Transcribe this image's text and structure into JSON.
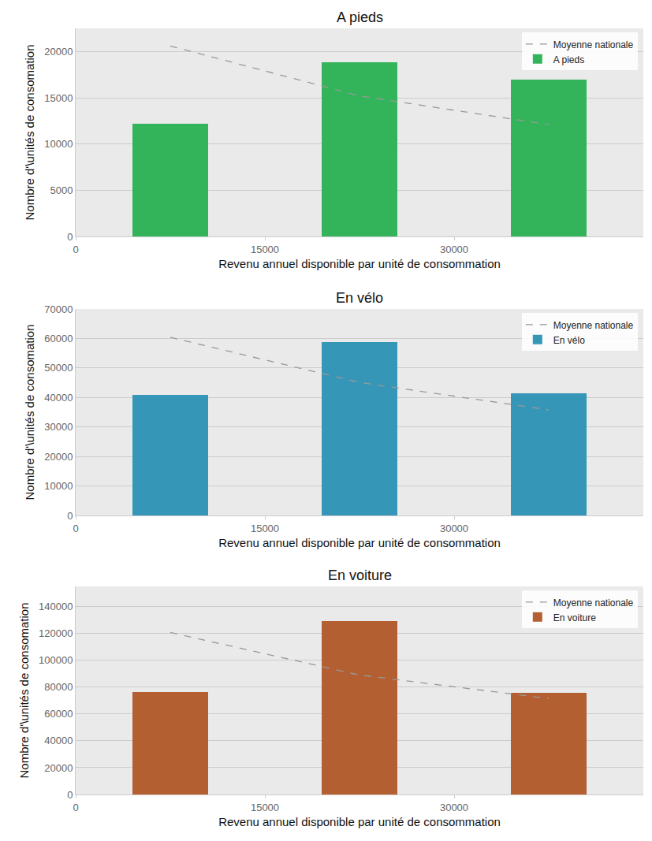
{
  "chart_data": [
    {
      "type": "bar",
      "title": "A pieds",
      "xlabel": "Revenu annuel disponible par unité de consommation",
      "ylabel": "Nombre d'\\unités de consomation",
      "x": [
        7500,
        22500,
        37500
      ],
      "series": [
        {
          "name": "Moyenne nationale",
          "type": "line",
          "line_style": "dashed",
          "color": "#999999",
          "values": [
            20600,
            15200,
            12100
          ]
        },
        {
          "name": "A pieds",
          "type": "bar",
          "color": "#34b45a",
          "values": [
            12200,
            18800,
            17000
          ]
        }
      ],
      "xlim": [
        0,
        45000
      ],
      "xticks": [
        0,
        15000,
        30000
      ],
      "ylim": [
        0,
        22500
      ],
      "yticks": [
        0,
        5000,
        10000,
        15000,
        20000
      ],
      "grid": true,
      "legend": "upper right"
    },
    {
      "type": "bar",
      "title": "En vélo",
      "xlabel": "Revenu annuel disponible par unité de consommation",
      "ylabel": "Nombre d'\\unités de consomation",
      "x": [
        7500,
        22500,
        37500
      ],
      "series": [
        {
          "name": "Moyenne nationale",
          "type": "line",
          "line_style": "dashed",
          "color": "#999999",
          "values": [
            60400,
            45100,
            35800
          ]
        },
        {
          "name": "En vélo",
          "type": "bar",
          "color": "#3596b8",
          "values": [
            40900,
            58800,
            41400
          ]
        }
      ],
      "xlim": [
        0,
        45000
      ],
      "xticks": [
        0,
        15000,
        30000
      ],
      "ylim": [
        0,
        70000
      ],
      "yticks": [
        0,
        10000,
        20000,
        30000,
        40000,
        50000,
        60000,
        70000
      ],
      "grid": true,
      "legend": "upper right"
    },
    {
      "type": "bar",
      "title": "En voiture",
      "xlabel": "Revenu annuel disponible par unité de consommation",
      "ylabel": "Nombre d'\\unités de consomation",
      "x": [
        7500,
        22500,
        37500
      ],
      "series": [
        {
          "name": "Moyenne nationale",
          "type": "line",
          "line_style": "dashed",
          "color": "#999999",
          "values": [
            120700,
            89000,
            71500
          ]
        },
        {
          "name": "En voiture",
          "type": "bar",
          "color": "#b35f32",
          "values": [
            76200,
            128900,
            75500
          ]
        }
      ],
      "xlim": [
        0,
        45000
      ],
      "xticks": [
        0,
        15000,
        30000
      ],
      "ylim": [
        0,
        155000
      ],
      "yticks": [
        0,
        20000,
        40000,
        60000,
        80000,
        100000,
        120000,
        140000
      ],
      "grid": true,
      "legend": "upper right"
    }
  ]
}
